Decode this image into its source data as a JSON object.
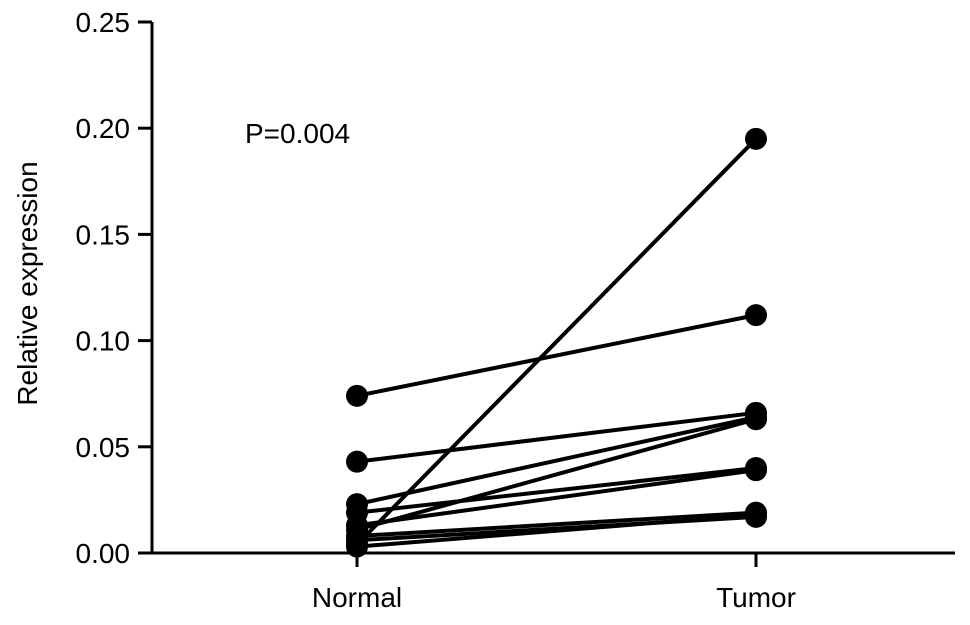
{
  "chart_data": {
    "type": "line",
    "title": "",
    "xlabel": "",
    "ylabel": "Relative expression",
    "categories": [
      "Normal",
      "Tumor"
    ],
    "ylim": [
      0,
      0.25
    ],
    "yticks": [
      "0.00",
      "0.05",
      "0.10",
      "0.15",
      "0.20",
      "0.25"
    ],
    "annotation": "P=0.004",
    "grid": false,
    "legend": "none",
    "pairs": [
      {
        "normal": 0.074,
        "tumor": 0.112
      },
      {
        "normal": 0.043,
        "tumor": 0.066
      },
      {
        "normal": 0.023,
        "tumor": 0.064
      },
      {
        "normal": 0.019,
        "tumor": 0.04
      },
      {
        "normal": 0.013,
        "tumor": 0.039
      },
      {
        "normal": 0.011,
        "tumor": 0.063
      },
      {
        "normal": 0.008,
        "tumor": 0.019
      },
      {
        "normal": 0.006,
        "tumor": 0.017
      },
      {
        "normal": 0.004,
        "tumor": 0.195
      },
      {
        "normal": 0.003,
        "tumor": 0.018
      }
    ],
    "color": "#000000"
  }
}
